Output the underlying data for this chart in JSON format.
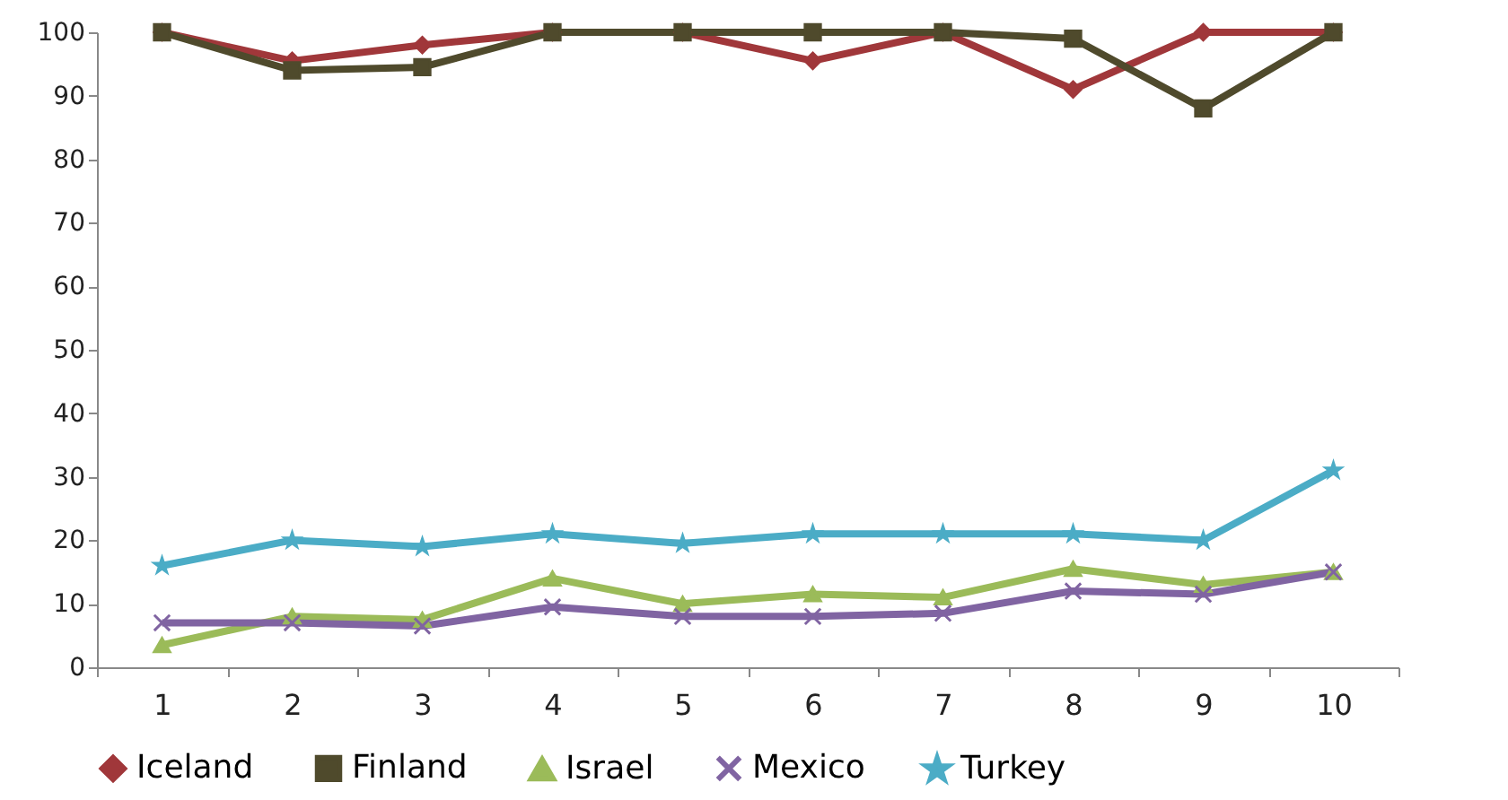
{
  "chart_data": {
    "type": "line",
    "categories": [
      "1",
      "2",
      "3",
      "4",
      "5",
      "6",
      "7",
      "8",
      "9",
      "10"
    ],
    "series": [
      {
        "name": "Iceland",
        "color": "#a0373a",
        "marker": "diamond",
        "values": [
          100,
          95.5,
          98,
          100,
          100,
          95.5,
          100,
          91,
          100,
          100
        ]
      },
      {
        "name": "Finland",
        "color": "#4f4a2c",
        "marker": "square",
        "values": [
          100,
          94,
          94.5,
          100,
          100,
          100,
          100,
          99,
          88,
          100
        ]
      },
      {
        "name": "Israel",
        "color": "#9bbb59",
        "marker": "triangle",
        "values": [
          3.5,
          8,
          7.5,
          14,
          10,
          11.5,
          11,
          15.5,
          13,
          15
        ]
      },
      {
        "name": "Mexico",
        "color": "#8064a2",
        "marker": "cross",
        "values": [
          7,
          7,
          6.5,
          9.5,
          8,
          8,
          8.5,
          12,
          11.5,
          15
        ]
      },
      {
        "name": "Turkey",
        "color": "#4bacc6",
        "marker": "star",
        "values": [
          16,
          20,
          19,
          21,
          19.5,
          21,
          21,
          21,
          20,
          31
        ]
      }
    ],
    "ylim": [
      0,
      100
    ],
    "yticks": [
      0,
      10,
      20,
      30,
      40,
      50,
      60,
      70,
      80,
      90,
      100
    ],
    "grid": false,
    "legend": "bottom",
    "line_style": "solid"
  }
}
